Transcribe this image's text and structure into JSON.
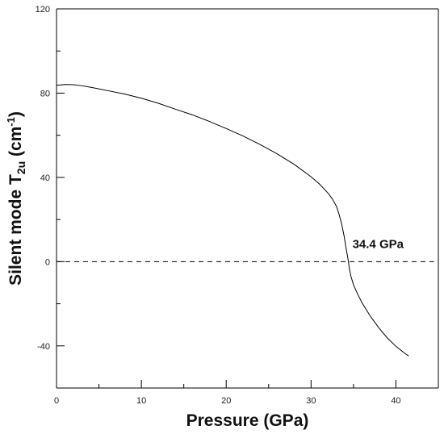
{
  "chart_data": {
    "type": "line",
    "title": "",
    "xlabel": "Pressure (GPa)",
    "ylabel": {
      "prefix": "Silent mode T",
      "subscript": "2u",
      "unit_open": " (cm",
      "superscript": "-1",
      "unit_close": ")"
    },
    "xlim": [
      0,
      45
    ],
    "ylim": [
      -60,
      120
    ],
    "xticks_major": [
      0,
      10,
      20,
      30,
      40
    ],
    "xticks_minor": [
      5,
      15,
      25,
      35
    ],
    "yticks_major": [
      -40,
      0,
      40,
      80,
      120
    ],
    "yticks_minor": [
      -20,
      20,
      60,
      100
    ],
    "xtick_labels": [
      "0",
      "10",
      "20",
      "30",
      "40"
    ],
    "ytick_labels": [
      "-40",
      "0",
      "40",
      "80",
      "120"
    ],
    "grid": false,
    "legend": "none",
    "series": [
      {
        "style": "solid",
        "color": "#000000",
        "x": [
          0,
          1,
          2,
          3,
          4,
          6,
          8,
          10,
          12,
          14,
          16,
          18,
          20,
          22,
          24,
          26,
          28,
          30,
          31,
          32,
          32.5,
          33,
          33.3,
          33.6,
          33.9,
          34.1,
          34.3,
          34.4,
          34.5,
          34.7,
          35,
          35.5,
          36,
          37,
          38,
          39,
          40,
          41,
          41.5
        ],
        "y": [
          83.7,
          84.1,
          84.0,
          83.5,
          82.8,
          81.2,
          79.6,
          77.6,
          75.2,
          72.4,
          69.7,
          66.6,
          63.2,
          59.6,
          55.6,
          51.2,
          46.2,
          40.3,
          36.8,
          32.5,
          29.8,
          26.2,
          22.5,
          18.0,
          12.0,
          7.0,
          2.5,
          0,
          -3.0,
          -7.0,
          -11.0,
          -15.5,
          -19.5,
          -26.0,
          -31.5,
          -36.3,
          -40.2,
          -43.4,
          -44.8
        ]
      },
      {
        "style": "dashed",
        "color": "#000000",
        "x": [
          0,
          44.5
        ],
        "y": [
          0,
          0
        ]
      }
    ],
    "annotations": [
      {
        "text": "34.4 GPa",
        "x": 34.4,
        "y": 0
      }
    ]
  }
}
